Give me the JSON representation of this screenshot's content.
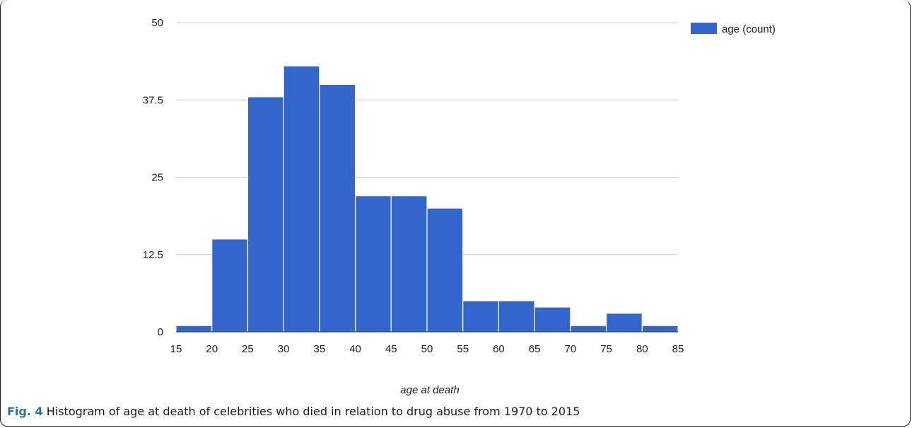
{
  "chart_data": {
    "type": "bar",
    "subtype": "histogram",
    "bin_edges": [
      15,
      20,
      25,
      30,
      35,
      40,
      45,
      50,
      55,
      60,
      65,
      70,
      75,
      80,
      85
    ],
    "values": [
      1,
      15,
      38,
      43,
      40,
      22,
      22,
      20,
      5,
      5,
      4,
      1,
      3,
      1
    ],
    "series": [
      {
        "name": "age (count)",
        "values": [
          1,
          15,
          38,
          43,
          40,
          22,
          22,
          20,
          5,
          5,
          4,
          1,
          3,
          1
        ]
      }
    ],
    "xlabel": "age at death",
    "ylabel": "",
    "xlim": [
      15,
      85
    ],
    "ylim": [
      0,
      50
    ],
    "x_ticks": [
      "15",
      "20",
      "25",
      "30",
      "35",
      "40",
      "45",
      "50",
      "55",
      "60",
      "65",
      "70",
      "75",
      "80",
      "85"
    ],
    "y_ticks": [
      "0",
      "12.5",
      "25",
      "37.5",
      "50"
    ],
    "y_tick_values": [
      0,
      12.5,
      25,
      37.5,
      50
    ],
    "grid": "horizontal",
    "legend_position": "top-right",
    "bar_color": "#3366cc"
  },
  "caption": {
    "label": "Fig. 4",
    "text": " Histogram of age at death of celebrities who died in relation to drug abuse from 1970 to 2015"
  }
}
